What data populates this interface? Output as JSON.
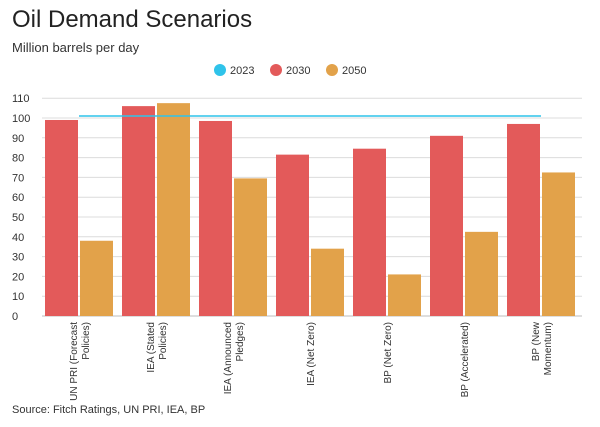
{
  "title": "Oil Demand Scenarios",
  "subtitle": "Million barrels per day",
  "source": "Source: Fitch Ratings, UN PRI, IEA, BP",
  "colors": {
    "2023": "#2fc3ea",
    "2030": "#e35a5a",
    "2050": "#e2a24a"
  },
  "chart_data": {
    "type": "bar",
    "title": "Oil Demand Scenarios",
    "subtitle": "Million barrels per day",
    "ylabel": "Million barrels per day",
    "ylim": [
      0,
      110
    ],
    "yticks": [
      0,
      10,
      20,
      30,
      40,
      50,
      60,
      70,
      80,
      90,
      100,
      110
    ],
    "grid": true,
    "legend": "top-center",
    "categories": [
      [
        "UN PRI (Forecast",
        "Policies)"
      ],
      [
        "IEA (Stated",
        "Policies)"
      ],
      [
        "IEA (Announced",
        "Pledges)"
      ],
      [
        "IEA (Net Zero)"
      ],
      [
        "BP (Net Zero)"
      ],
      [
        "BP (Accelerated)"
      ],
      [
        "BP (New",
        "Momentum)"
      ]
    ],
    "reference_line": {
      "name": "2023",
      "value": 101
    },
    "series": [
      {
        "name": "2030",
        "values": [
          99,
          106,
          98.5,
          81.5,
          84.5,
          91,
          97
        ]
      },
      {
        "name": "2050",
        "values": [
          38,
          107.5,
          69.5,
          34,
          21,
          42.5,
          72.5
        ]
      }
    ],
    "legend_items": [
      "2023",
      "2030",
      "2050"
    ]
  }
}
